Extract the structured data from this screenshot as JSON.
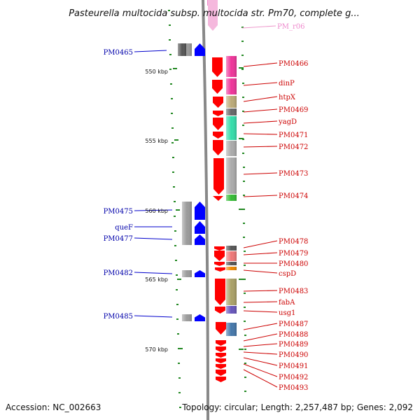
{
  "title": "Pasteurella multocida subsp. multocida str. Pm70, complete g...",
  "footer": {
    "accession": "Accession: NC_002663",
    "topology": "Topology: circular; Length: 2,257,487 bp; Genes: 2,092"
  },
  "scale_labels": [
    "550 kbp",
    "555 kbp",
    "560 kbp",
    "565 kbp",
    "570 kbp"
  ],
  "colors": {
    "left_label": "#0000aa",
    "right_label": "#cc0000",
    "rna_label": "#ee88cc",
    "leader_left": "#0000cc",
    "leader_right": "#cc0000",
    "arrow_left": "#0000ff",
    "arrow_right": "#ff0000",
    "backbone": "#888888",
    "tick": "#228822"
  },
  "genes": {
    "left": [
      {
        "label": "PM0465"
      },
      {
        "label": "PM0475"
      },
      {
        "label": "queF"
      },
      {
        "label": "PM0477"
      },
      {
        "label": "PM0482"
      },
      {
        "label": "PM0485"
      }
    ],
    "right": [
      {
        "label": "PM0466",
        "cog": "#ee3399"
      },
      {
        "label": "dinP",
        "cog": "#ee3399"
      },
      {
        "label": "htpX",
        "cog": "#bbaa77"
      },
      {
        "label": "PM0469",
        "cog": "#666666"
      },
      {
        "label": "yagD",
        "cog": "#33ddaa"
      },
      {
        "label": "PM0471",
        "cog": "#aaaaaa"
      },
      {
        "label": "PM0472",
        "cog": "#aaaaaa"
      },
      {
        "label": "PM0473",
        "cog": "#aaaaaa"
      },
      {
        "label": "PM0474",
        "cog": "#33bb33"
      },
      {
        "label": "PM0478",
        "cog": "#555555"
      },
      {
        "label": "PM0479",
        "cog": "#ee7777"
      },
      {
        "label": "PM0480",
        "cog": "#555555"
      },
      {
        "label": "cspD",
        "cog": "#ee8800"
      },
      {
        "label": "PM0483",
        "cog": "#aaa066"
      },
      {
        "label": "fabA",
        "cog": "#6655bb"
      },
      {
        "label": "usg1",
        "cog": "#4477aa"
      },
      {
        "label": "PM0487"
      },
      {
        "label": "PM0488"
      },
      {
        "label": "PM0489"
      },
      {
        "label": "PM0490"
      },
      {
        "label": "PM0491"
      },
      {
        "label": "PM0492"
      },
      {
        "label": "PM0493"
      }
    ],
    "rna": [
      {
        "label": "PM_r06"
      }
    ]
  }
}
